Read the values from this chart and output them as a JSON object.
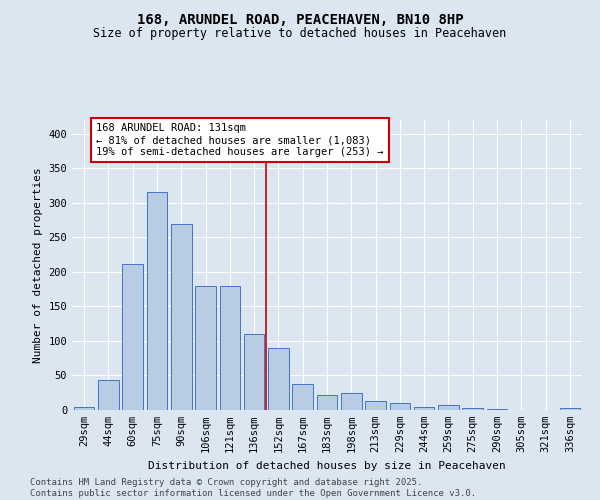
{
  "title": "168, ARUNDEL ROAD, PEACEHAVEN, BN10 8HP",
  "subtitle": "Size of property relative to detached houses in Peacehaven",
  "xlabel": "Distribution of detached houses by size in Peacehaven",
  "ylabel": "Number of detached properties",
  "categories": [
    "29sqm",
    "44sqm",
    "60sqm",
    "75sqm",
    "90sqm",
    "106sqm",
    "121sqm",
    "136sqm",
    "152sqm",
    "167sqm",
    "183sqm",
    "198sqm",
    "213sqm",
    "229sqm",
    "244sqm",
    "259sqm",
    "275sqm",
    "290sqm",
    "305sqm",
    "321sqm",
    "336sqm"
  ],
  "values": [
    5,
    43,
    212,
    315,
    270,
    180,
    180,
    110,
    90,
    38,
    22,
    25,
    13,
    10,
    5,
    7,
    3,
    2,
    0,
    0,
    3
  ],
  "bar_color": "#b8cce4",
  "bar_edge_color": "#4472c4",
  "background_color": "#dce6f1",
  "grid_color": "#ffffff",
  "vline_x": 7.5,
  "vline_color": "#cc0000",
  "annotation_text": "168 ARUNDEL ROAD: 131sqm\n← 81% of detached houses are smaller (1,083)\n19% of semi-detached houses are larger (253) →",
  "annotation_box_color": "#ffffff",
  "annotation_box_edge_color": "#cc0000",
  "footer_line1": "Contains HM Land Registry data © Crown copyright and database right 2025.",
  "footer_line2": "Contains public sector information licensed under the Open Government Licence v3.0.",
  "ylim": [
    0,
    420
  ],
  "yticks": [
    0,
    50,
    100,
    150,
    200,
    250,
    300,
    350,
    400
  ],
  "title_fontsize": 10,
  "subtitle_fontsize": 8.5,
  "axis_label_fontsize": 8,
  "tick_fontsize": 7.5,
  "annotation_fontsize": 7.5,
  "footer_fontsize": 6.5
}
